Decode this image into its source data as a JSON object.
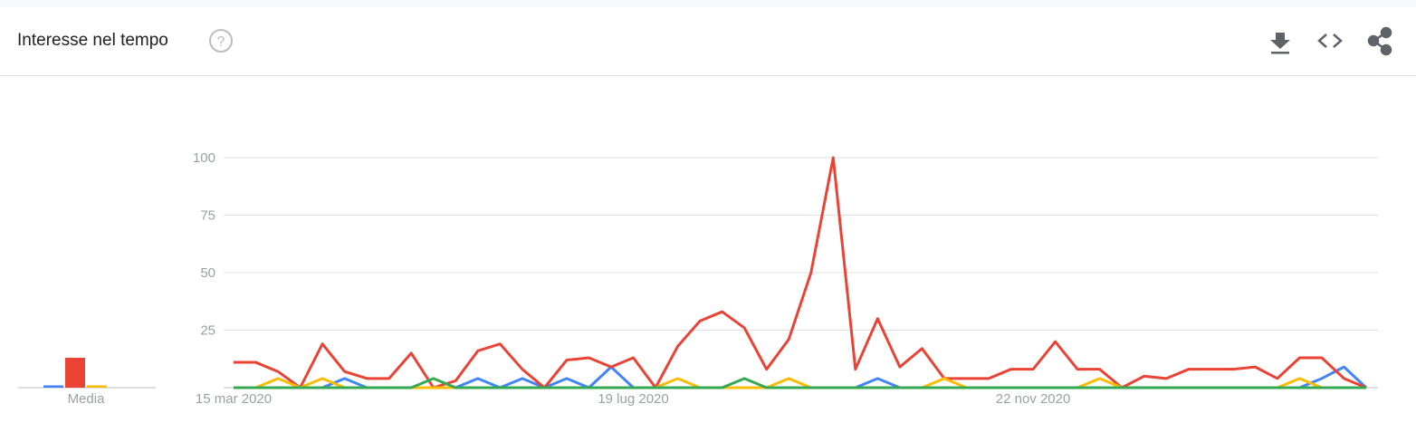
{
  "header": {
    "title": "Interesse nel tempo"
  },
  "chart_data": {
    "type": "line",
    "categories": [
      "15 mar 2020",
      null,
      null,
      null,
      null,
      null,
      null,
      null,
      null,
      null,
      null,
      null,
      null,
      null,
      null,
      null,
      null,
      null,
      "19 lug 2020",
      null,
      null,
      null,
      null,
      null,
      null,
      null,
      null,
      null,
      null,
      null,
      null,
      null,
      null,
      null,
      null,
      null,
      "22 nov 2020",
      null,
      null,
      null,
      null,
      null,
      null,
      null,
      null,
      null,
      null,
      null,
      null,
      null,
      null,
      null
    ],
    "series": [
      {
        "color": "#4285f4",
        "values": [
          0,
          0,
          0,
          0,
          0,
          4,
          0,
          0,
          0,
          0,
          0,
          4,
          0,
          4,
          0,
          4,
          0,
          9,
          0,
          0,
          0,
          0,
          0,
          0,
          0,
          0,
          0,
          0,
          0,
          4,
          0,
          0,
          0,
          0,
          0,
          0,
          0,
          0,
          0,
          0,
          0,
          0,
          0,
          0,
          0,
          0,
          0,
          0,
          0,
          4,
          9,
          0
        ]
      },
      {
        "color": "#ea4335",
        "values": [
          11,
          11,
          7,
          0,
          19,
          7,
          4,
          4,
          15,
          0,
          3,
          16,
          19,
          8,
          0,
          12,
          13,
          9,
          13,
          0,
          18,
          29,
          33,
          26,
          8,
          21,
          50,
          100,
          8,
          30,
          9,
          17,
          4,
          4,
          4,
          8,
          8,
          20,
          8,
          8,
          0,
          5,
          4,
          8,
          8,
          8,
          9,
          4,
          13,
          13,
          4,
          0
        ]
      },
      {
        "color": "#fbbc04",
        "values": [
          0,
          0,
          4,
          0,
          4,
          0,
          0,
          0,
          0,
          0,
          0,
          0,
          0,
          0,
          0,
          0,
          0,
          0,
          0,
          0,
          4,
          0,
          0,
          0,
          0,
          4,
          0,
          0,
          0,
          0,
          0,
          0,
          4,
          0,
          0,
          0,
          0,
          0,
          0,
          4,
          0,
          0,
          0,
          0,
          0,
          0,
          0,
          0,
          4,
          0,
          0,
          0
        ]
      },
      {
        "color": "#34a853",
        "values": [
          0,
          0,
          0,
          0,
          0,
          0,
          0,
          0,
          0,
          4,
          0,
          0,
          0,
          0,
          0,
          0,
          0,
          0,
          0,
          0,
          0,
          0,
          0,
          4,
          0,
          0,
          0,
          0,
          0,
          0,
          0,
          0,
          0,
          0,
          0,
          0,
          0,
          0,
          0,
          0,
          0,
          0,
          0,
          0,
          0,
          0,
          0,
          0,
          0,
          0,
          0,
          0
        ]
      }
    ],
    "ylim": [
      0,
      100
    ],
    "yticks": [
      25,
      50,
      75,
      100
    ],
    "grid": true,
    "average": {
      "label": "Media",
      "values": [
        1,
        13,
        1,
        0
      ]
    }
  }
}
